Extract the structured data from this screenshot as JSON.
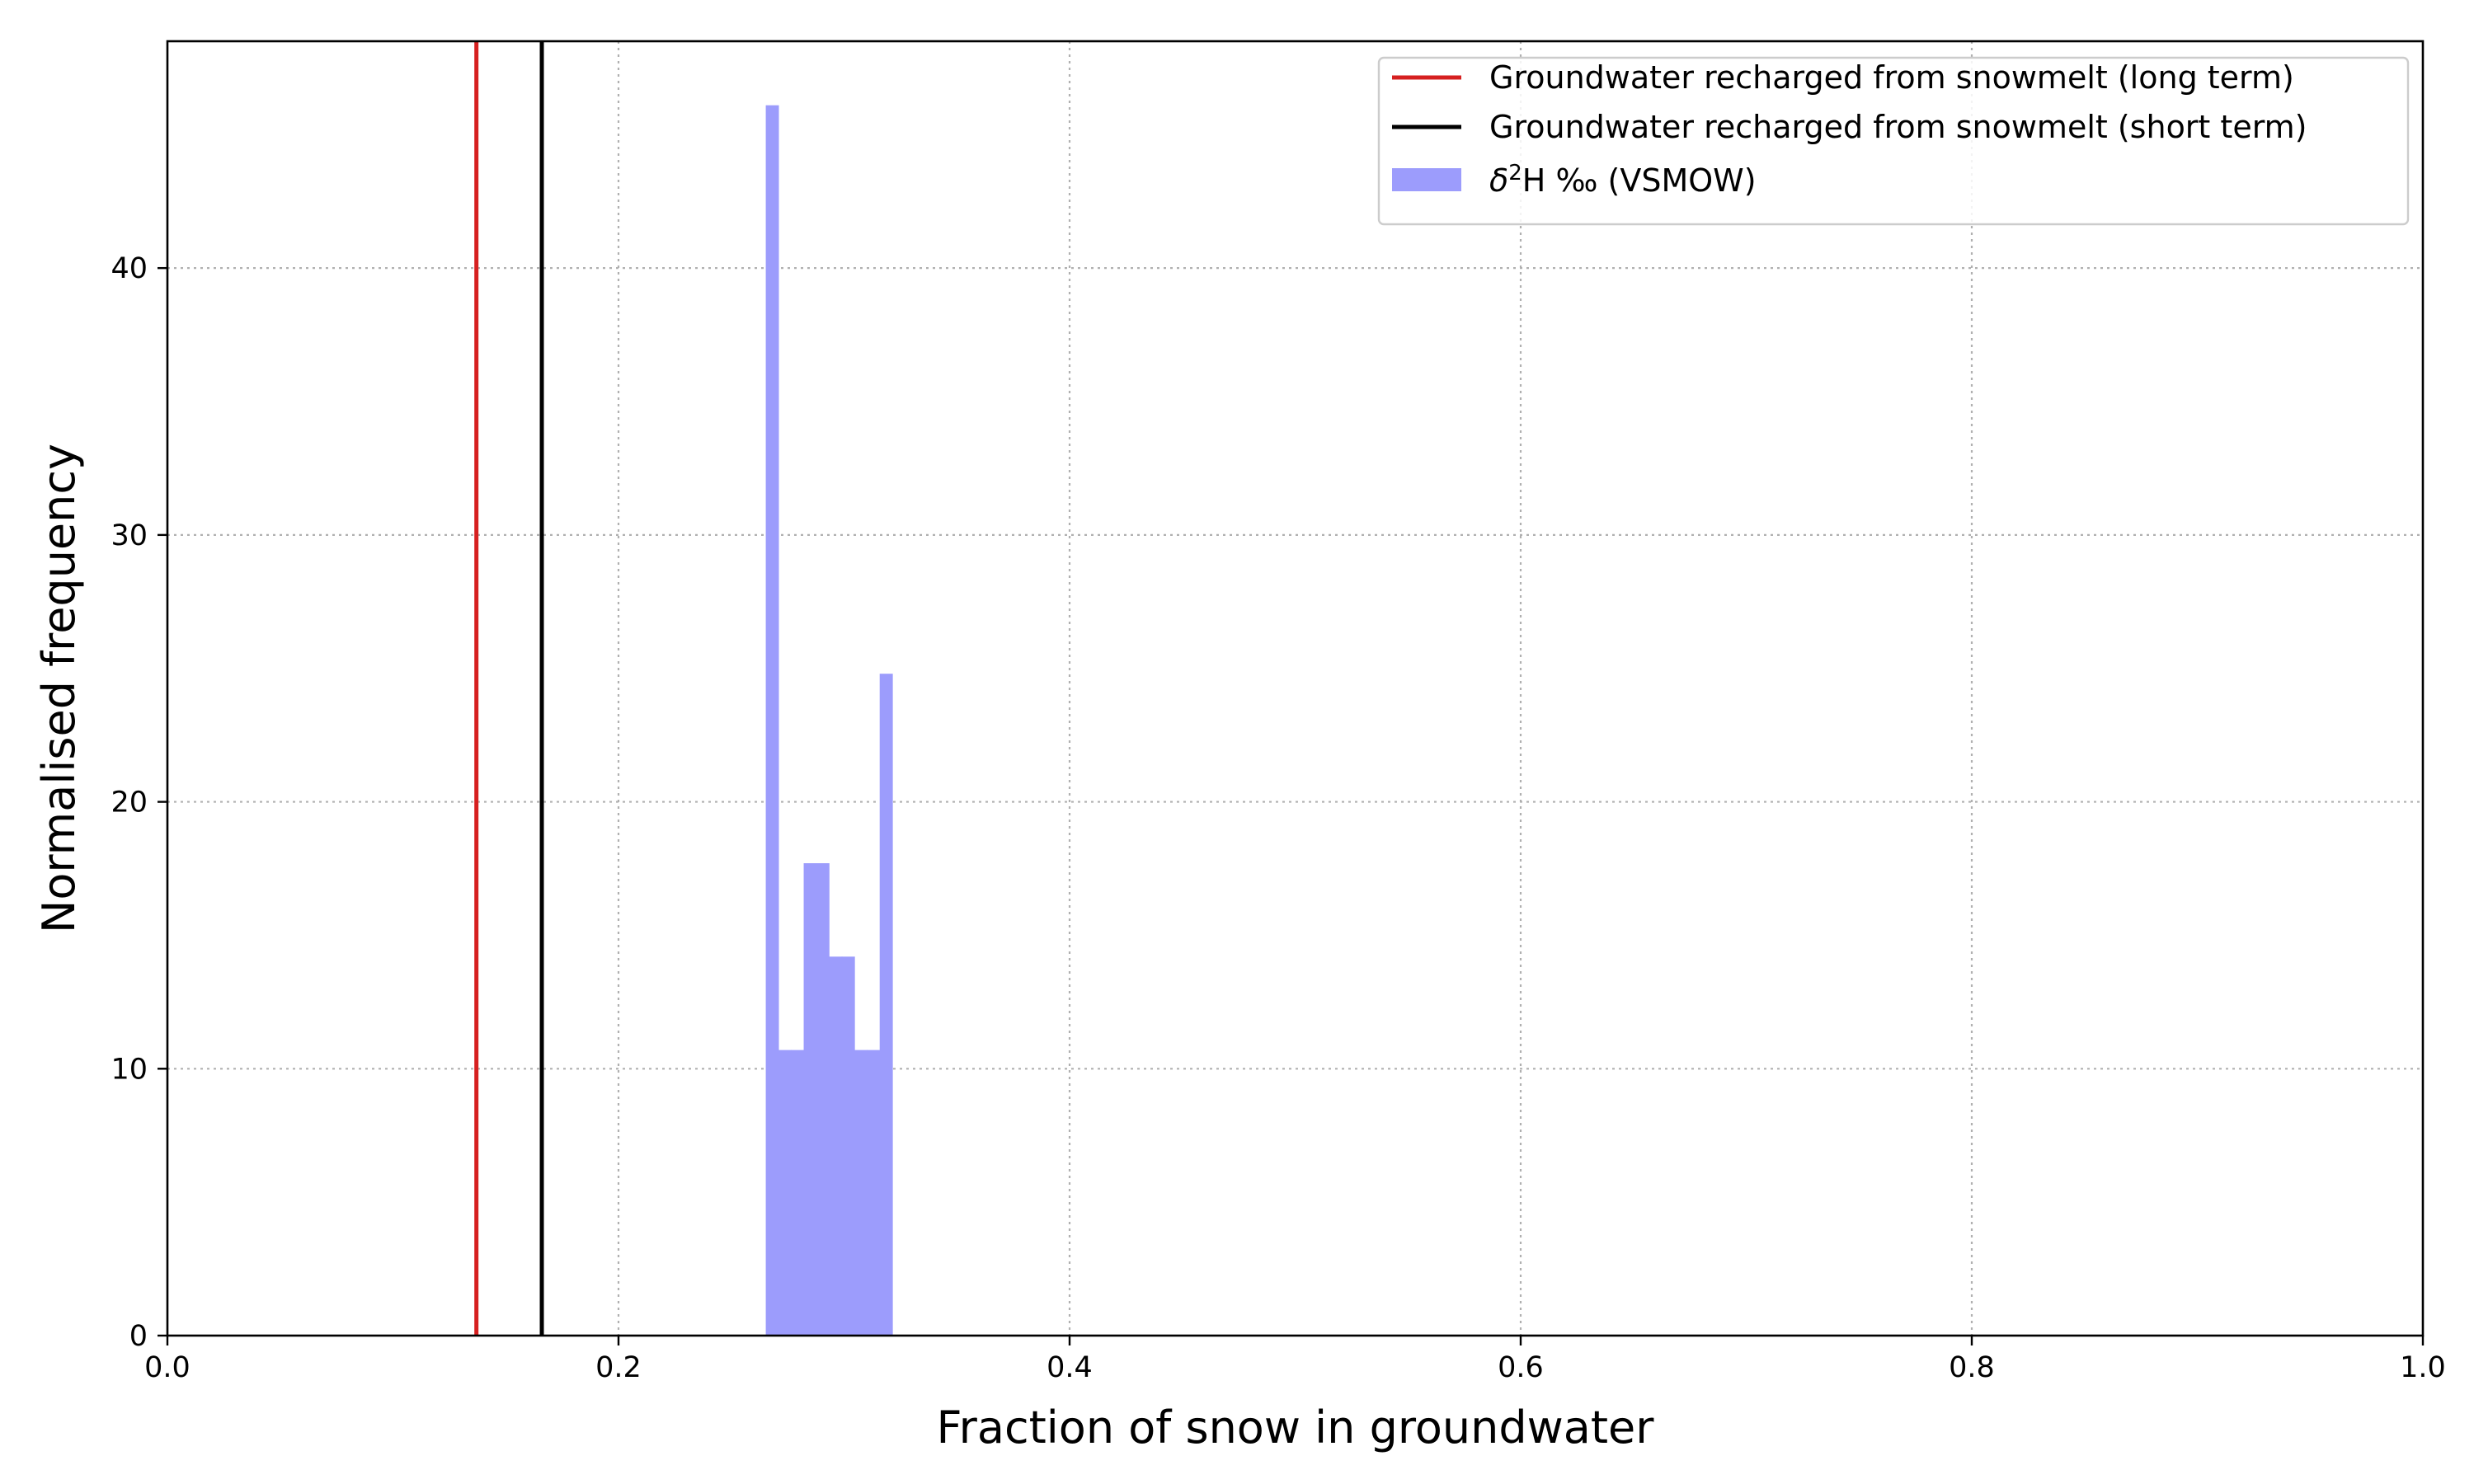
{
  "chart_data": {
    "type": "bar",
    "title": "",
    "xlabel": "Fraction of snow in groundwater",
    "ylabel": "Normalised frequency",
    "xlim": [
      0.0,
      1.0
    ],
    "ylim": [
      0,
      48.5
    ],
    "xticks": [
      0.0,
      0.2,
      0.4,
      0.6,
      0.8,
      1.0
    ],
    "xtick_labels": [
      "0.0",
      "0.2",
      "0.4",
      "0.6",
      "0.8",
      "1.0"
    ],
    "yticks": [
      0,
      10,
      20,
      30,
      40
    ],
    "ytick_labels": [
      "0",
      "10",
      "20",
      "30",
      "40"
    ],
    "grid": true,
    "legend_position": "top-right",
    "histogram": {
      "name": "δ²H ‰ (VSMOW)",
      "color": "#9c9cfc",
      "bin_edges": [
        0.2653,
        0.2709,
        0.2765,
        0.2821,
        0.2877,
        0.2933,
        0.299,
        0.3046,
        0.3102,
        0.3158,
        0.3214
      ],
      "values": [
        46.1,
        10.7,
        10.7,
        17.7,
        17.7,
        14.2,
        14.2,
        10.7,
        10.7,
        24.8
      ]
    },
    "vlines": [
      {
        "name": "Groundwater recharged from snowmelt (long term)",
        "x": 0.137,
        "color": "#d62020"
      },
      {
        "name": "Groundwater recharged from snowmelt (short term)",
        "x": 0.166,
        "color": "#000000"
      }
    ],
    "legend": {
      "entries": [
        {
          "label": "Groundwater recharged from snowmelt (long term)",
          "kind": "line",
          "color": "#d62020"
        },
        {
          "label": "Groundwater recharged from snowmelt (short term)",
          "kind": "line",
          "color": "#000000"
        },
        {
          "label_prefix": "δ",
          "label_sup": "2",
          "label_suffix": "H ‰ (VSMOW)",
          "kind": "patch",
          "color": "#9c9cfc"
        }
      ]
    }
  }
}
